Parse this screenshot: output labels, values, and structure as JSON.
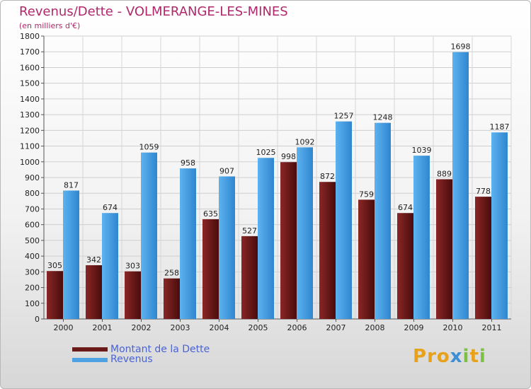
{
  "title": "Revenus/Dette - VOLMERANGE-LES-MINES",
  "subtitle": "(en milliers d'€)",
  "chart_data": {
    "type": "bar",
    "categories": [
      "2000",
      "2001",
      "2002",
      "2003",
      "2004",
      "2005",
      "2006",
      "2007",
      "2008",
      "2009",
      "2010",
      "2011"
    ],
    "series": [
      {
        "name": "Montant de la Dette",
        "values": [
          305,
          342,
          303,
          258,
          635,
          527,
          998,
          872,
          759,
          674,
          889,
          778
        ],
        "color": "#6b1a1a"
      },
      {
        "name": "Revenus",
        "values": [
          817,
          674,
          1059,
          958,
          907,
          1025,
          1092,
          1257,
          1248,
          1039,
          1698,
          1187
        ],
        "color": "#4ea2e3"
      }
    ],
    "yticks": [
      0,
      100,
      200,
      300,
      400,
      500,
      600,
      700,
      800,
      900,
      1000,
      1100,
      1200,
      1300,
      1400,
      1500,
      1600,
      1700,
      1800
    ],
    "ylim": [
      0,
      1800
    ],
    "grid": true,
    "legend_position": "bottom-left"
  },
  "legend": {
    "debt_label": "Montant de la Dette",
    "revenue_label": "Revenus",
    "debt_color": "#6b1a1a",
    "revenue_color": "#4ea2e3"
  },
  "logo": {
    "text": "Proxiti"
  }
}
